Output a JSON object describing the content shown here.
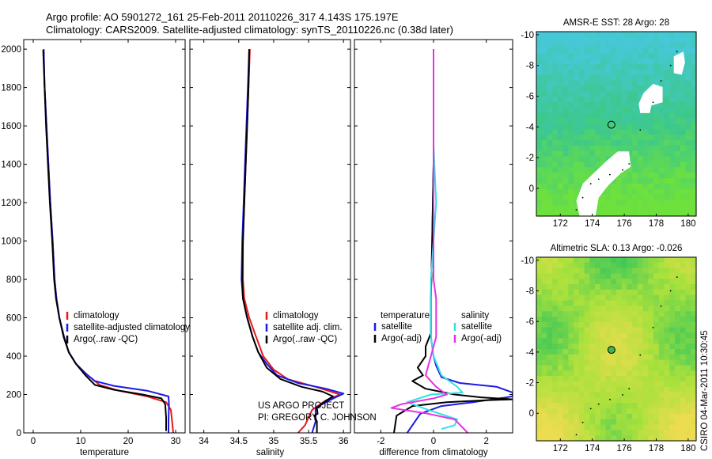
{
  "header": {
    "line1": "Argo profile: AO 5901272_161 25-Feb-2011 20110226_317 4.143S 175.197E",
    "line2": "Climatology: CARS2009. Satellite-adjusted climatology: synTS_20110226.nc (0.38d later)"
  },
  "footer": {
    "project": "US ARGO PROJECT",
    "pi": "PI: GREGORY C. JOHNSON",
    "side_label": "CSIRO 04-Mar-2011 10:30:45"
  },
  "colors": {
    "climatology": "#e8191b",
    "satellite": "#1a1ae6",
    "argo": "#000000",
    "sal_satellite": "#33e0e6",
    "sal_argo": "#e633e0"
  },
  "chart_data": [
    {
      "id": "temperature",
      "type": "line",
      "xlabel": "temperature",
      "xlim": [
        -2,
        32
      ],
      "ylim": [
        2050,
        0
      ],
      "xticks": [
        0,
        10,
        20,
        30
      ],
      "yticks": [
        0,
        200,
        400,
        600,
        800,
        1000,
        1200,
        1400,
        1600,
        1800,
        2000
      ],
      "legend": [
        "climatology",
        "satellite-adjusted climatology",
        "Argo(..raw -QC)"
      ],
      "series": [
        {
          "name": "climatology",
          "color_key": "climatology",
          "points": [
            [
              29.5,
              0
            ],
            [
              29.3,
              50
            ],
            [
              29.0,
              120
            ],
            [
              28.0,
              160
            ],
            [
              24.0,
              190
            ],
            [
              18.0,
              220
            ],
            [
              14.0,
              250
            ],
            [
              11.5,
              300
            ],
            [
              9.0,
              360
            ],
            [
              7.5,
              420
            ],
            [
              6.5,
              500
            ],
            [
              5.5,
              600
            ],
            [
              4.9,
              700
            ],
            [
              4.5,
              800
            ],
            [
              4.1,
              1000
            ],
            [
              3.6,
              1200
            ],
            [
              3.2,
              1400
            ],
            [
              2.8,
              1600
            ],
            [
              2.4,
              1800
            ],
            [
              2.2,
              2000
            ]
          ]
        },
        {
          "name": "satellite",
          "color_key": "satellite",
          "points": [
            [
              28.5,
              0
            ],
            [
              28.5,
              60
            ],
            [
              28.6,
              150
            ],
            [
              28.5,
              190
            ],
            [
              24.0,
              220
            ],
            [
              17.0,
              245
            ],
            [
              13.0,
              270
            ],
            [
              11.0,
              310
            ],
            [
              9.0,
              360
            ],
            [
              7.5,
              420
            ],
            [
              6.5,
              500
            ],
            [
              5.5,
              600
            ],
            [
              4.9,
              700
            ],
            [
              4.5,
              800
            ],
            [
              4.1,
              1000
            ],
            [
              3.6,
              1200
            ],
            [
              3.2,
              1400
            ],
            [
              2.8,
              1600
            ],
            [
              2.4,
              1800
            ],
            [
              2.2,
              2000
            ]
          ]
        },
        {
          "name": "Argo",
          "color_key": "argo",
          "points": [
            [
              28.0,
              10
            ],
            [
              28.0,
              80
            ],
            [
              27.8,
              150
            ],
            [
              27.0,
              180
            ],
            [
              23.0,
              200
            ],
            [
              17.0,
              225
            ],
            [
              13.0,
              250
            ],
            [
              11.0,
              300
            ],
            [
              9.0,
              360
            ],
            [
              7.5,
              420
            ],
            [
              6.4,
              500
            ],
            [
              5.5,
              600
            ],
            [
              4.8,
              700
            ],
            [
              4.4,
              800
            ],
            [
              4.0,
              1000
            ],
            [
              3.5,
              1200
            ],
            [
              3.1,
              1400
            ],
            [
              2.7,
              1600
            ],
            [
              2.4,
              1800
            ],
            [
              2.1,
              1995
            ]
          ]
        }
      ]
    },
    {
      "id": "salinity",
      "type": "line",
      "xlabel": "salinity",
      "xlim": [
        33.8,
        36.1
      ],
      "ylim": [
        2050,
        0
      ],
      "xticks": [
        34,
        34.5,
        35,
        35.5,
        36
      ],
      "legend": [
        "climatology",
        "satellite adj. clim.",
        "Argo(..raw -QC)"
      ],
      "series": [
        {
          "name": "climatology",
          "color_key": "climatology",
          "points": [
            [
              35.35,
              0
            ],
            [
              35.45,
              40
            ],
            [
              35.5,
              80
            ],
            [
              35.55,
              120
            ],
            [
              35.75,
              170
            ],
            [
              35.95,
              200
            ],
            [
              35.6,
              240
            ],
            [
              35.2,
              280
            ],
            [
              35.0,
              330
            ],
            [
              34.85,
              400
            ],
            [
              34.75,
              500
            ],
            [
              34.65,
              600
            ],
            [
              34.58,
              700
            ],
            [
              34.56,
              800
            ],
            [
              34.56,
              1000
            ],
            [
              34.58,
              1200
            ],
            [
              34.6,
              1400
            ],
            [
              34.62,
              1600
            ],
            [
              34.64,
              1800
            ],
            [
              34.66,
              2000
            ]
          ]
        },
        {
          "name": "satellite",
          "color_key": "satellite",
          "points": [
            [
              35.55,
              0
            ],
            [
              35.6,
              60
            ],
            [
              35.6,
              130
            ],
            [
              35.8,
              170
            ],
            [
              36.0,
              205
            ],
            [
              35.75,
              230
            ],
            [
              35.35,
              260
            ],
            [
              35.05,
              300
            ],
            [
              34.9,
              360
            ],
            [
              34.78,
              420
            ],
            [
              34.7,
              500
            ],
            [
              34.62,
              600
            ],
            [
              34.56,
              700
            ],
            [
              34.54,
              800
            ],
            [
              34.55,
              1000
            ],
            [
              34.57,
              1200
            ],
            [
              34.59,
              1400
            ],
            [
              34.61,
              1600
            ],
            [
              34.63,
              1800
            ],
            [
              34.65,
              2000
            ]
          ]
        },
        {
          "name": "Argo",
          "color_key": "argo",
          "points": [
            [
              35.62,
              0
            ],
            [
              35.62,
              60
            ],
            [
              35.58,
              90
            ],
            [
              35.63,
              100
            ],
            [
              35.62,
              130
            ],
            [
              35.72,
              160
            ],
            [
              35.85,
              190
            ],
            [
              35.7,
              215
            ],
            [
              35.4,
              240
            ],
            [
              35.1,
              280
            ],
            [
              34.9,
              340
            ],
            [
              34.78,
              420
            ],
            [
              34.7,
              500
            ],
            [
              34.62,
              600
            ],
            [
              34.56,
              700
            ],
            [
              34.55,
              800
            ],
            [
              34.56,
              1000
            ],
            [
              34.58,
              1200
            ],
            [
              34.6,
              1400
            ],
            [
              34.62,
              1600
            ],
            [
              34.64,
              1800
            ],
            [
              34.65,
              2000
            ]
          ]
        }
      ]
    },
    {
      "id": "difference",
      "type": "line",
      "xlabel": "difference from climatology",
      "xlim": [
        -3,
        3
      ],
      "ylim": [
        2050,
        0
      ],
      "xticks": [
        -2,
        0,
        2
      ],
      "legend_left_title": "temperature",
      "legend_right_title": "salinity",
      "legend_left": [
        "satellite",
        "Argo(-adj)"
      ],
      "legend_right": [
        "satellite",
        "Argo(-adj)"
      ],
      "series": [
        {
          "name": "temp satellite",
          "color_key": "satellite",
          "points": [
            [
              -1.0,
              0
            ],
            [
              -0.5,
              100
            ],
            [
              0.3,
              140
            ],
            [
              1.5,
              160
            ],
            [
              2.5,
              180
            ],
            [
              3.0,
              190
            ],
            [
              3.0,
              210
            ],
            [
              2.4,
              240
            ],
            [
              1.0,
              260
            ],
            [
              0.3,
              290
            ],
            [
              0.1,
              350
            ],
            [
              0.0,
              400
            ],
            [
              -0.1,
              500
            ],
            [
              -0.1,
              700
            ],
            [
              -0.05,
              1000
            ],
            [
              0.0,
              1400
            ],
            [
              0.0,
              1700
            ],
            [
              0.0,
              2000
            ]
          ]
        },
        {
          "name": "temp Argo",
          "color_key": "argo",
          "points": [
            [
              -1.5,
              0
            ],
            [
              -1.4,
              90
            ],
            [
              -0.8,
              140
            ],
            [
              0.5,
              160
            ],
            [
              2.0,
              170
            ],
            [
              3.0,
              175
            ],
            [
              1.8,
              185
            ],
            [
              0.8,
              200
            ],
            [
              -0.3,
              230
            ],
            [
              -0.8,
              270
            ],
            [
              -0.4,
              300
            ],
            [
              -0.6,
              340
            ],
            [
              -0.3,
              400
            ],
            [
              -0.3,
              450
            ],
            [
              -0.1,
              520
            ],
            [
              -0.1,
              700
            ],
            [
              -0.05,
              1000
            ],
            [
              0.0,
              1400
            ],
            [
              0.0,
              1700
            ],
            [
              0.0,
              2000
            ]
          ]
        },
        {
          "name": "sal satellite",
          "color_key": "sal_satellite",
          "points": [
            [
              0.3,
              20
            ],
            [
              0.8,
              40
            ],
            [
              0.9,
              70
            ],
            [
              -0.2,
              120
            ],
            [
              -1.0,
              160
            ],
            [
              -0.1,
              200
            ],
            [
              1.1,
              210
            ],
            [
              0.9,
              240
            ],
            [
              0.3,
              300
            ],
            [
              0.0,
              400
            ],
            [
              -0.1,
              500
            ],
            [
              -0.1,
              600
            ],
            [
              -0.1,
              800
            ],
            [
              0.0,
              1000
            ],
            [
              0.1,
              1200
            ],
            [
              0.0,
              1500
            ],
            [
              0.0,
              1800
            ],
            [
              0.0,
              2000
            ]
          ]
        },
        {
          "name": "sal Argo",
          "color_key": "sal_argo",
          "points": [
            [
              1.3,
              0
            ],
            [
              0.8,
              70
            ],
            [
              -0.2,
              100
            ],
            [
              -1.6,
              130
            ],
            [
              -1.2,
              150
            ],
            [
              0.0,
              180
            ],
            [
              0.5,
              200
            ],
            [
              0.1,
              240
            ],
            [
              -0.3,
              300
            ],
            [
              -0.1,
              400
            ],
            [
              0.1,
              500
            ],
            [
              0.1,
              600
            ],
            [
              0.1,
              700
            ],
            [
              0.0,
              800
            ],
            [
              0.0,
              1000
            ],
            [
              0.0,
              1300
            ],
            [
              0.0,
              1800
            ],
            [
              0.0,
              2000
            ]
          ]
        }
      ]
    },
    {
      "id": "sst_map",
      "type": "heatmap",
      "title": "AMSR-E SST: 28 Argo: 28",
      "xlim": [
        170.5,
        180.5
      ],
      "ylim": [
        -10.2,
        1.8
      ],
      "xticks": [
        172,
        174,
        176,
        178,
        180
      ],
      "yticks": [
        0,
        -2,
        -4,
        -6,
        -8,
        -10
      ],
      "marker": {
        "lon": 175.197,
        "lat": -4.143
      }
    },
    {
      "id": "sla_map",
      "type": "heatmap",
      "title": "Altimetric SLA: 0.13 Argo: -0.026",
      "xlim": [
        170.5,
        180.5
      ],
      "ylim": [
        -10.2,
        1.8
      ],
      "xticks": [
        172,
        174,
        176,
        178,
        180
      ],
      "yticks": [
        0,
        -2,
        -4,
        -6,
        -8,
        -10
      ],
      "marker": {
        "lon": 175.197,
        "lat": -4.143
      }
    }
  ]
}
